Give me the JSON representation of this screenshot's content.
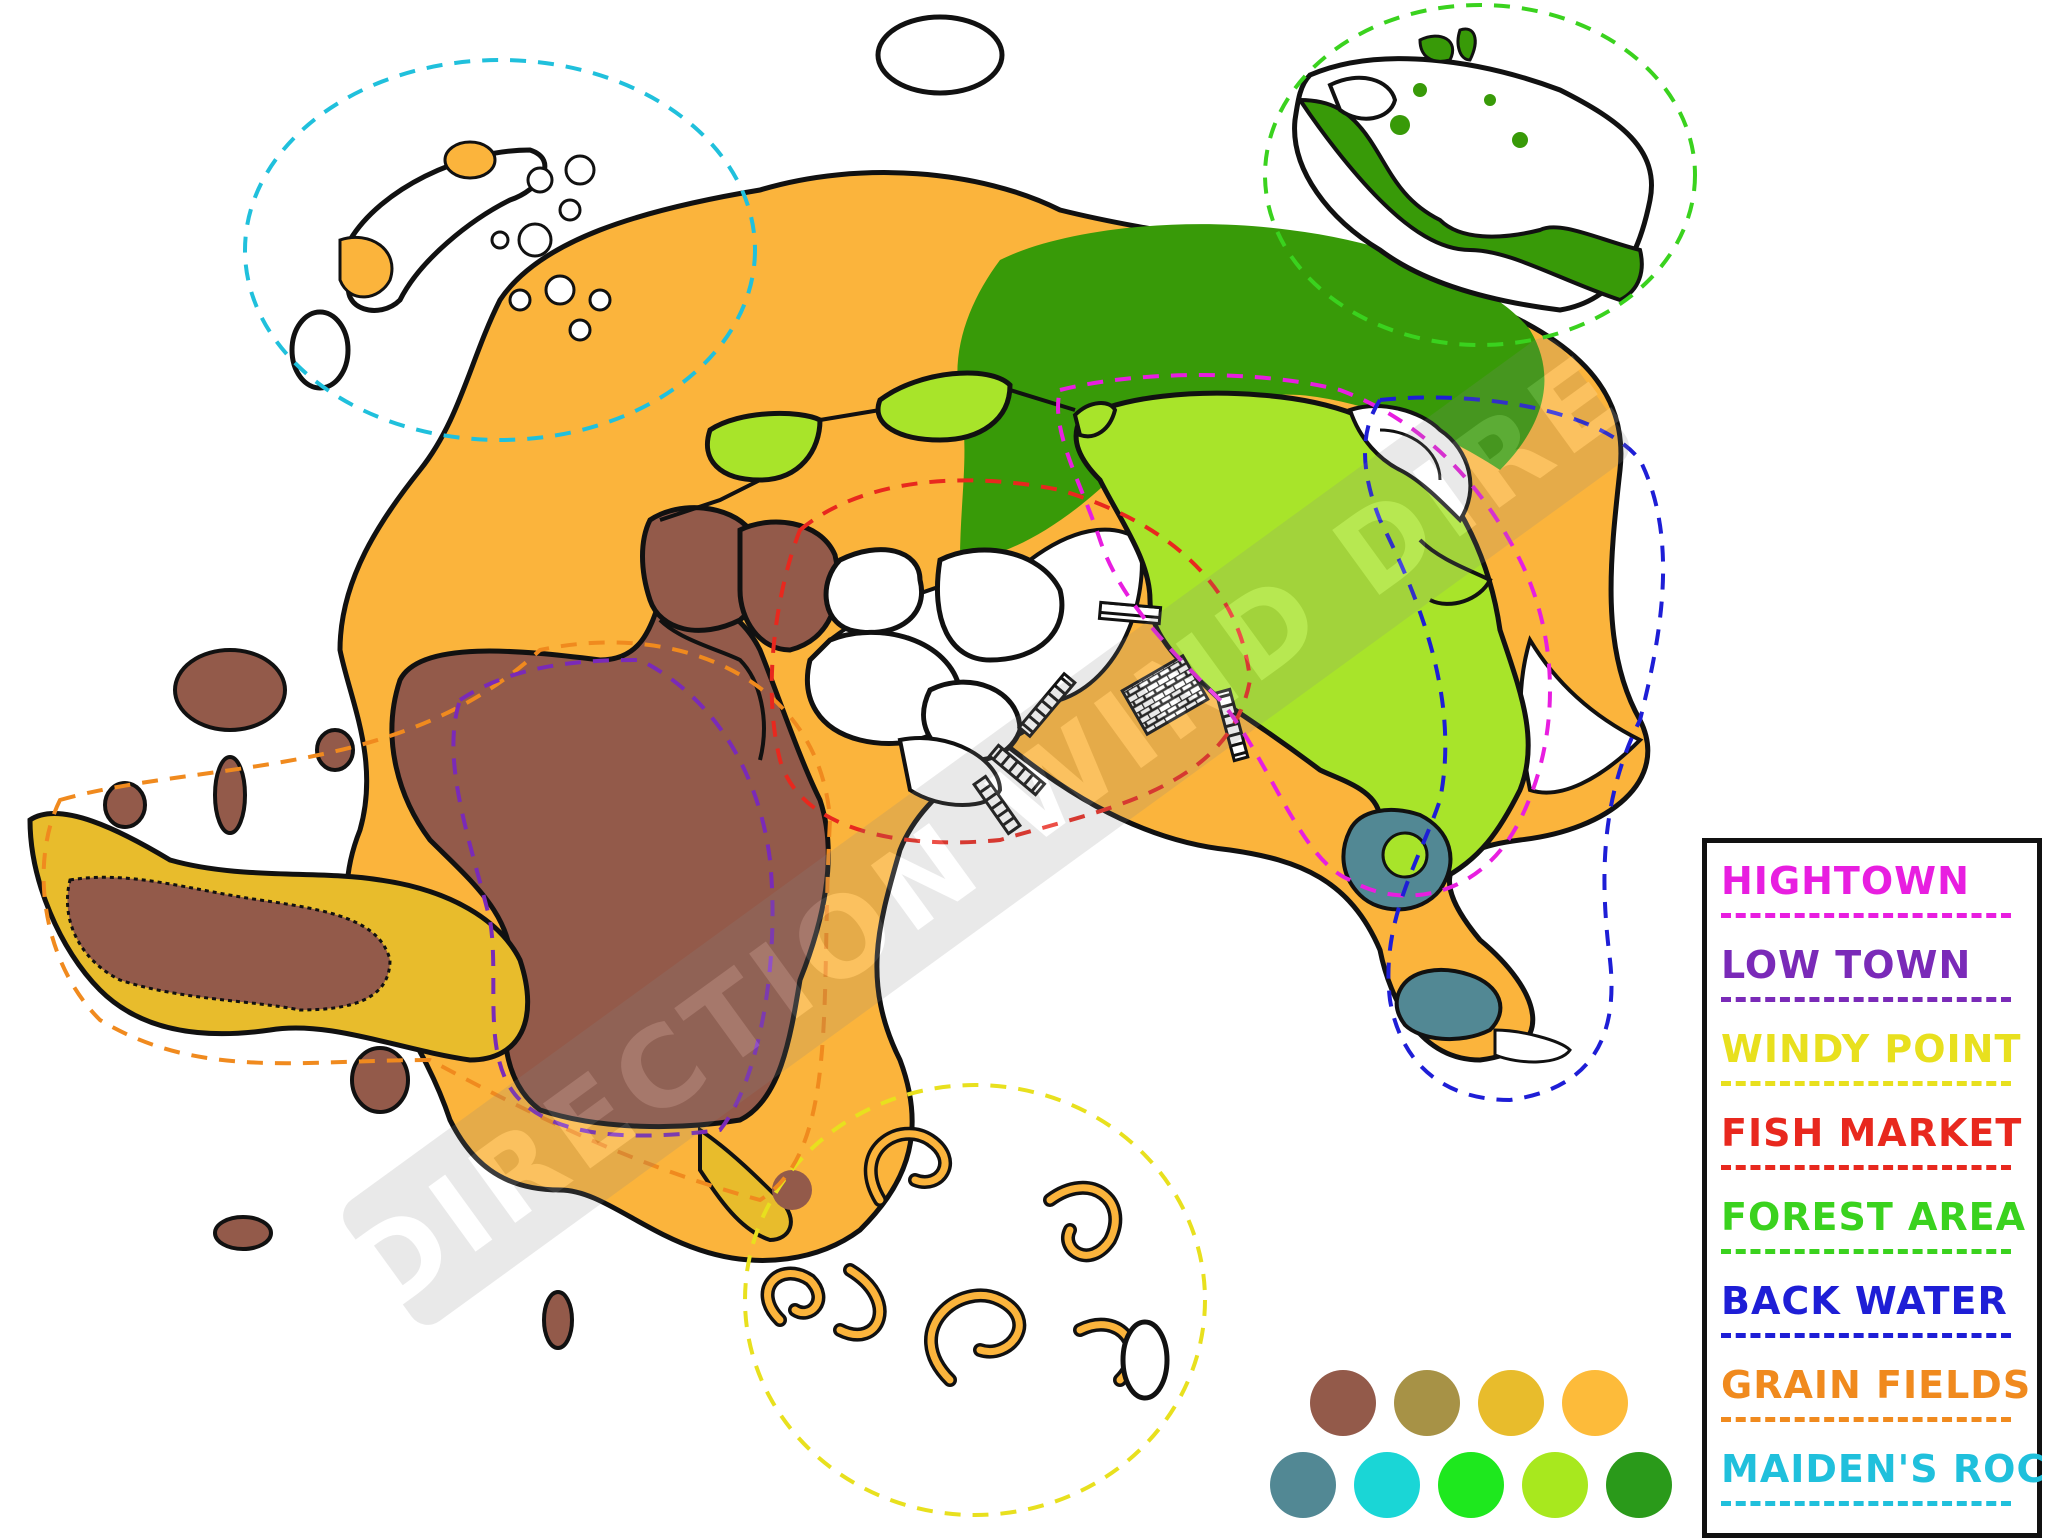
{
  "watermark": "WIND DIRECTION WIND DIRECTION",
  "legend": {
    "items": [
      {
        "label": "HIGHTOWN",
        "color": "#e81ee0"
      },
      {
        "label": "LOW TOWN",
        "color": "#7a2ab8"
      },
      {
        "label": "WINDY POINT",
        "color": "#e8e01e"
      },
      {
        "label": "FISH MARKET",
        "color": "#e8281e"
      },
      {
        "label": "FOREST AREA",
        "color": "#3ad21e"
      },
      {
        "label": "BACK WATER",
        "color": "#1e1ed6"
      },
      {
        "label": "GRAIN FIELDS",
        "color": "#f08a1e"
      },
      {
        "label": "MAIDEN'S ROCK",
        "color": "#20c0dc"
      }
    ]
  },
  "palette": {
    "top_row": [
      "#935a4a",
      "#a79246",
      "#e8bc2c",
      "#fdbb3a"
    ],
    "bottom_row": [
      "#528894",
      "#1ad6d6",
      "#1ee81e",
      "#a8e81e",
      "#2a9a1a"
    ]
  },
  "colors": {
    "grain": "#fbb43c",
    "forest": "#389a08",
    "lightgreen": "#a8e42a",
    "brown": "#935a4a",
    "windy": "#e8bc2c",
    "backwater": "#528894",
    "outline": "#111111"
  }
}
